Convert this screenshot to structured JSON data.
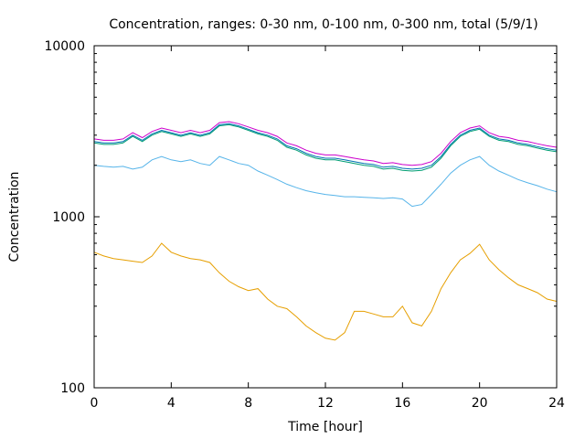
{
  "chart_data": {
    "type": "line",
    "title": "Concentration, ranges: 0-30 nm, 0-100 nm, 0-300 nm, total (5/9/1)",
    "xlabel": "Time [hour]",
    "ylabel": "Concentration",
    "xlim": [
      0,
      24
    ],
    "ylim": [
      100,
      10000
    ],
    "yscale": "log",
    "x_ticks": [
      "0",
      "4",
      "8",
      "12",
      "16",
      "20",
      "24"
    ],
    "y_ticks": [
      "100",
      "1000",
      "10000"
    ],
    "grid": false,
    "legend": "none",
    "x": [
      0,
      0.5,
      1,
      1.5,
      2,
      2.5,
      3,
      3.5,
      4,
      4.5,
      5,
      5.5,
      6,
      6.5,
      7,
      7.5,
      8,
      8.5,
      9,
      9.5,
      10,
      10.5,
      11,
      11.5,
      12,
      12.5,
      13,
      13.5,
      14,
      14.5,
      15,
      15.5,
      16,
      16.5,
      17,
      17.5,
      18,
      18.5,
      19,
      19.5,
      20,
      20.5,
      21,
      21.5,
      22,
      22.5,
      23,
      23.5,
      24
    ],
    "series": [
      {
        "color": "#e69f00",
        "values": [
          620,
          590,
          570,
          560,
          550,
          540,
          590,
          700,
          620,
          590,
          570,
          560,
          540,
          470,
          420,
          390,
          370,
          380,
          330,
          300,
          290,
          260,
          230,
          210,
          195,
          190,
          210,
          280,
          280,
          270,
          260,
          260,
          300,
          240,
          230,
          280,
          380,
          470,
          560,
          610,
          690,
          560,
          490,
          440,
          400,
          380,
          360,
          330,
          320
        ]
      },
      {
        "color": "#56b4e9",
        "values": [
          2000,
          1970,
          1950,
          1970,
          1900,
          1950,
          2150,
          2250,
          2150,
          2100,
          2150,
          2050,
          2000,
          2250,
          2150,
          2050,
          2000,
          1850,
          1750,
          1650,
          1550,
          1480,
          1420,
          1380,
          1350,
          1330,
          1310,
          1310,
          1300,
          1290,
          1280,
          1290,
          1270,
          1150,
          1180,
          1350,
          1550,
          1800,
          2000,
          2150,
          2250,
          2000,
          1850,
          1750,
          1650,
          1580,
          1520,
          1450,
          1400
        ]
      },
      {
        "color": "#009e73",
        "values": [
          2700,
          2650,
          2650,
          2700,
          2950,
          2750,
          3000,
          3150,
          3050,
          2950,
          3050,
          2950,
          3050,
          3400,
          3450,
          3350,
          3200,
          3050,
          2950,
          2800,
          2550,
          2450,
          2300,
          2200,
          2150,
          2150,
          2100,
          2050,
          2000,
          1970,
          1900,
          1920,
          1870,
          1850,
          1870,
          1950,
          2200,
          2600,
          2950,
          3150,
          3250,
          2950,
          2800,
          2750,
          2650,
          2600,
          2520,
          2450,
          2400
        ]
      },
      {
        "color": "#0072b2",
        "values": [
          2750,
          2700,
          2700,
          2750,
          3000,
          2800,
          3050,
          3200,
          3100,
          3000,
          3100,
          3000,
          3100,
          3450,
          3500,
          3400,
          3250,
          3100,
          3000,
          2850,
          2600,
          2500,
          2350,
          2250,
          2200,
          2200,
          2150,
          2100,
          2050,
          2020,
          1950,
          1970,
          1920,
          1900,
          1920,
          2000,
          2250,
          2650,
          3000,
          3200,
          3300,
          3000,
          2850,
          2800,
          2700,
          2650,
          2570,
          2500,
          2450
        ]
      },
      {
        "color": "#cc00cc",
        "values": [
          2850,
          2800,
          2800,
          2850,
          3100,
          2900,
          3150,
          3300,
          3200,
          3100,
          3200,
          3100,
          3200,
          3550,
          3600,
          3500,
          3350,
          3200,
          3100,
          2950,
          2700,
          2600,
          2450,
          2350,
          2300,
          2300,
          2250,
          2200,
          2150,
          2120,
          2050,
          2070,
          2020,
          2000,
          2020,
          2100,
          2350,
          2750,
          3100,
          3300,
          3400,
          3100,
          2950,
          2900,
          2800,
          2750,
          2670,
          2600,
          2550
        ]
      }
    ]
  }
}
